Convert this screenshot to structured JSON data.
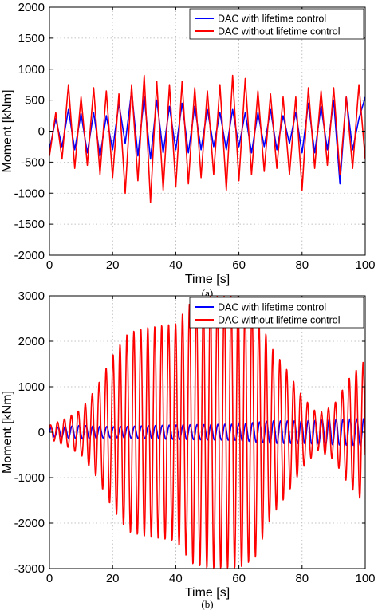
{
  "chart_data": [
    {
      "type": "line",
      "panel_label": "(a)",
      "xlabel": "Time [s]",
      "ylabel": "Moment [kNm]",
      "xlim": [
        0,
        100
      ],
      "ylim": [
        -2000,
        2000
      ],
      "xticks": [
        0,
        20,
        40,
        60,
        80,
        100
      ],
      "yticks": [
        2000,
        1500,
        1000,
        500,
        0,
        -500,
        -1000,
        -1500,
        -2000
      ],
      "grid": true,
      "legend_position": "top-right",
      "series": [
        {
          "name": "DAC with lifetime control",
          "color": "#0000ff",
          "x": [
            0,
            2,
            4,
            6,
            8,
            10,
            12,
            14,
            16,
            18,
            20,
            22,
            24,
            26,
            28,
            30,
            32,
            34,
            36,
            38,
            40,
            42,
            44,
            46,
            48,
            50,
            52,
            54,
            56,
            58,
            60,
            62,
            64,
            66,
            68,
            70,
            72,
            74,
            76,
            78,
            80,
            82,
            84,
            86,
            88,
            90,
            92,
            94,
            96,
            98,
            100
          ],
          "y": [
            -300,
            200,
            -250,
            350,
            -300,
            280,
            -350,
            300,
            -400,
            250,
            -300,
            450,
            -200,
            650,
            -400,
            550,
            -450,
            500,
            -350,
            400,
            -300,
            450,
            -350,
            400,
            -300,
            350,
            -250,
            300,
            -300,
            350,
            -250,
            300,
            -350,
            300,
            -250,
            350,
            -300,
            250,
            -200,
            300,
            -350,
            450,
            -350,
            400,
            -300,
            500,
            -850,
            550,
            -300,
            200,
            550
          ]
        },
        {
          "name": "DAC without lifetime control",
          "color": "#ff0000",
          "x": [
            0,
            2,
            4,
            6,
            8,
            10,
            12,
            14,
            16,
            18,
            20,
            22,
            24,
            26,
            28,
            30,
            32,
            34,
            36,
            38,
            40,
            42,
            44,
            46,
            48,
            50,
            52,
            54,
            56,
            58,
            60,
            62,
            64,
            66,
            68,
            70,
            72,
            74,
            76,
            78,
            80,
            82,
            84,
            86,
            88,
            90,
            92,
            94,
            96,
            98,
            100
          ],
          "y": [
            -400,
            300,
            -450,
            750,
            -600,
            550,
            -550,
            700,
            -700,
            650,
            -750,
            600,
            -1000,
            750,
            -800,
            900,
            -1150,
            800,
            -950,
            750,
            -900,
            800,
            -850,
            700,
            -750,
            650,
            -700,
            750,
            -950,
            900,
            -800,
            850,
            -700,
            650,
            -650,
            600,
            -600,
            550,
            -700,
            550,
            -950,
            700,
            -600,
            650,
            -550,
            700,
            -700,
            550,
            -600,
            750,
            -450
          ]
        }
      ]
    },
    {
      "type": "line",
      "panel_label": "(b)",
      "xlabel": "Time [s]",
      "ylabel": "Moment [kNm]",
      "xlim": [
        0,
        100
      ],
      "ylim": [
        -3000,
        3000
      ],
      "xticks": [
        0,
        20,
        40,
        60,
        80,
        100
      ],
      "yticks": [
        3000,
        2000,
        1000,
        0,
        -1000,
        -2000,
        -3000
      ],
      "grid": true,
      "legend_position": "top-right",
      "series": [
        {
          "name": "DAC with lifetime control",
          "color": "#0000ff",
          "period": 2.2,
          "envelope_t": [
            0,
            10,
            20,
            40,
            60,
            70,
            80,
            90,
            100
          ],
          "envelope_amp": [
            100,
            150,
            120,
            160,
            180,
            250,
            250,
            280,
            300
          ]
        },
        {
          "name": "DAC without lifetime control",
          "color": "#ff0000",
          "period": 2.2,
          "envelope_t": [
            0,
            5,
            10,
            15,
            20,
            25,
            30,
            40,
            45,
            50,
            60,
            65,
            70,
            75,
            80,
            85,
            90,
            95,
            100
          ],
          "envelope_amp": [
            150,
            300,
            500,
            1000,
            1700,
            2200,
            2300,
            2400,
            2900,
            3000,
            3000,
            2800,
            1900,
            1400,
            800,
            400,
            600,
            1200,
            1600
          ]
        }
      ]
    }
  ]
}
